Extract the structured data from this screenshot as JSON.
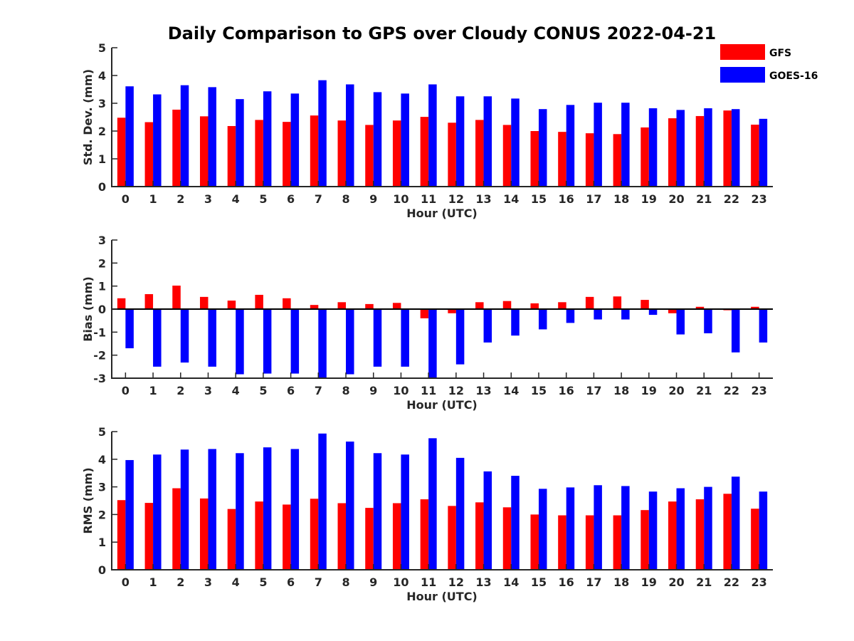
{
  "title": "Daily Comparison to GPS over Cloudy CONUS 2022-04-21",
  "legend": {
    "placement": "top-right",
    "entries": [
      {
        "name": "GFS",
        "color": "#ff0000"
      },
      {
        "name": "GOES-16",
        "color": "#0000ff"
      }
    ]
  },
  "chart_data": [
    {
      "type": "bar",
      "ylabel": "Std. Dev. (mm)",
      "xlabel": "Hour (UTC)",
      "ylim": [
        0,
        5
      ],
      "yticks": [
        0,
        1,
        2,
        3,
        4,
        5
      ],
      "categories": [
        "0",
        "1",
        "2",
        "3",
        "4",
        "5",
        "6",
        "7",
        "8",
        "9",
        "10",
        "11",
        "12",
        "13",
        "14",
        "15",
        "16",
        "17",
        "18",
        "19",
        "20",
        "21",
        "22",
        "23"
      ],
      "series": [
        {
          "name": "GFS",
          "color": "#ff0000",
          "values": [
            2.48,
            2.32,
            2.77,
            2.53,
            2.18,
            2.4,
            2.33,
            2.56,
            2.38,
            2.22,
            2.38,
            2.51,
            2.3,
            2.4,
            2.22,
            2.0,
            1.97,
            1.92,
            1.89,
            2.13,
            2.46,
            2.54,
            2.74,
            2.23
          ]
        },
        {
          "name": "GOES-16",
          "color": "#0000ff",
          "values": [
            3.61,
            3.32,
            3.65,
            3.58,
            3.15,
            3.43,
            3.35,
            3.83,
            3.68,
            3.4,
            3.35,
            3.68,
            3.25,
            3.25,
            3.17,
            2.79,
            2.94,
            3.02,
            3.02,
            2.82,
            2.76,
            2.82,
            2.79,
            2.44
          ]
        }
      ]
    },
    {
      "type": "bar",
      "ylabel": "Bias (mm)",
      "xlabel": "Hour (UTC)",
      "ylim": [
        -3,
        3
      ],
      "yticks": [
        -3,
        -2,
        -1,
        0,
        1,
        2,
        3
      ],
      "categories": [
        "0",
        "1",
        "2",
        "3",
        "4",
        "5",
        "6",
        "7",
        "8",
        "9",
        "10",
        "11",
        "12",
        "13",
        "14",
        "15",
        "16",
        "17",
        "18",
        "19",
        "20",
        "21",
        "22",
        "23"
      ],
      "series": [
        {
          "name": "GFS",
          "color": "#ff0000",
          "values": [
            0.47,
            0.65,
            1.02,
            0.53,
            0.37,
            0.62,
            0.47,
            0.18,
            0.3,
            0.22,
            0.27,
            -0.4,
            -0.18,
            0.3,
            0.35,
            0.25,
            0.3,
            0.53,
            0.55,
            0.4,
            -0.18,
            0.1,
            -0.05,
            0.1
          ]
        },
        {
          "name": "GOES-16",
          "color": "#0000ff",
          "values": [
            -1.7,
            -2.5,
            -2.32,
            -2.5,
            -2.83,
            -2.8,
            -2.8,
            -3.0,
            -2.83,
            -2.5,
            -2.5,
            -3.0,
            -2.4,
            -1.45,
            -1.15,
            -0.88,
            -0.6,
            -0.45,
            -0.45,
            -0.25,
            -1.1,
            -1.05,
            -1.88,
            -1.45
          ]
        }
      ]
    },
    {
      "type": "bar",
      "ylabel": "RMS (mm)",
      "xlabel": "Hour (UTC)",
      "ylim": [
        0,
        5
      ],
      "yticks": [
        0,
        1,
        2,
        3,
        4,
        5
      ],
      "categories": [
        "0",
        "1",
        "2",
        "3",
        "4",
        "5",
        "6",
        "7",
        "8",
        "9",
        "10",
        "11",
        "12",
        "13",
        "14",
        "15",
        "16",
        "17",
        "18",
        "19",
        "20",
        "21",
        "22",
        "23"
      ],
      "series": [
        {
          "name": "GFS",
          "color": "#ff0000",
          "values": [
            2.52,
            2.42,
            2.95,
            2.58,
            2.2,
            2.47,
            2.36,
            2.57,
            2.41,
            2.24,
            2.41,
            2.55,
            2.31,
            2.44,
            2.26,
            2.0,
            1.97,
            1.97,
            1.97,
            2.16,
            2.47,
            2.55,
            2.75,
            2.21
          ]
        },
        {
          "name": "GOES-16",
          "color": "#0000ff",
          "values": [
            3.97,
            4.17,
            4.35,
            4.37,
            4.22,
            4.43,
            4.37,
            4.93,
            4.64,
            4.22,
            4.17,
            4.76,
            4.05,
            3.56,
            3.4,
            2.93,
            2.98,
            3.06,
            3.03,
            2.83,
            2.95,
            3.0,
            3.37,
            2.83
          ]
        }
      ]
    }
  ]
}
